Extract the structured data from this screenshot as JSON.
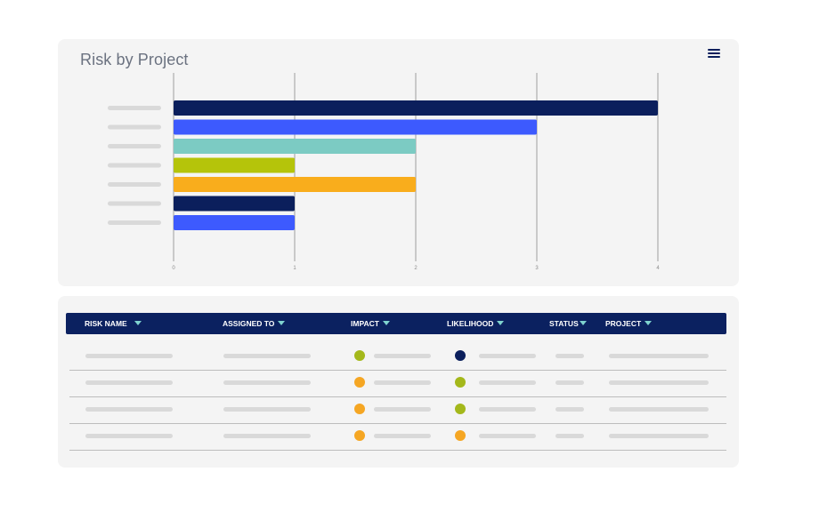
{
  "chart_card": {
    "title": "Risk by Project",
    "menu_icon": "hamburger-menu-icon"
  },
  "chart_data": {
    "type": "bar",
    "orientation": "horizontal",
    "title": "Risk by Project",
    "categories": [
      "",
      "",
      "",
      "",
      "",
      "",
      ""
    ],
    "values": [
      4,
      3,
      2,
      1,
      2,
      1,
      1
    ],
    "colors": [
      "#0b1f5c",
      "#3d5afe",
      "#7ccbc3",
      "#b5c40a",
      "#f9ad1c",
      "#0b1f5c",
      "#3d5afe"
    ],
    "xlim": [
      0,
      4
    ],
    "xticks": [
      "0",
      "1",
      "2",
      "3",
      "4"
    ],
    "grid": true,
    "legend": "none"
  },
  "table": {
    "columns": [
      {
        "label": "RISK NAME"
      },
      {
        "label": "ASSIGNED TO"
      },
      {
        "label": "IMPACT"
      },
      {
        "label": "LIKELIHOOD"
      },
      {
        "label": "STATUS"
      },
      {
        "label": "PROJECT"
      }
    ],
    "status_colors": {
      "green": "#a4b81b",
      "orange": "#f5a623",
      "navy": "#0b1f5c"
    },
    "rows": [
      {
        "impact": "green",
        "likelihood": "navy"
      },
      {
        "impact": "orange",
        "likelihood": "green"
      },
      {
        "impact": "orange",
        "likelihood": "green"
      },
      {
        "impact": "orange",
        "likelihood": "orange"
      }
    ]
  }
}
